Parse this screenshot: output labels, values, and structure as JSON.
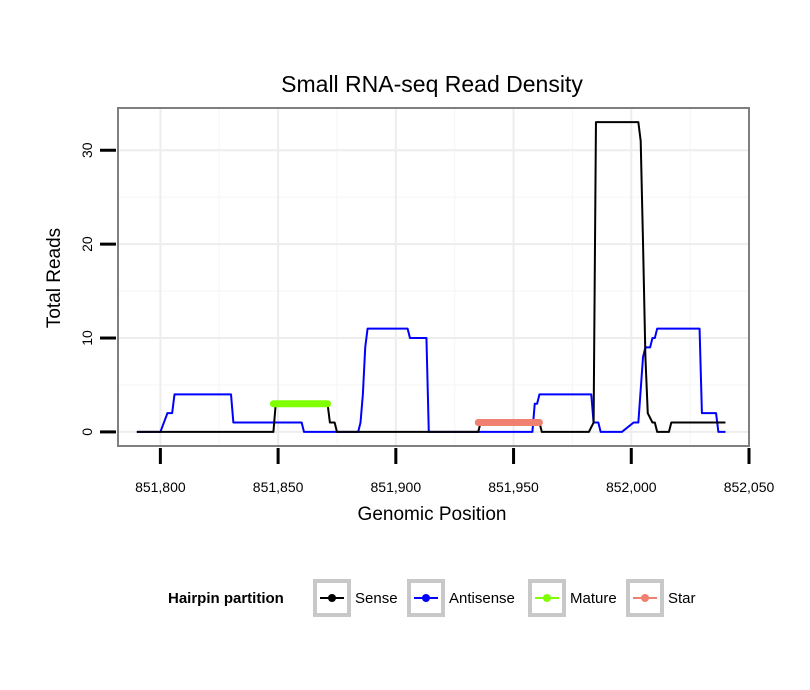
{
  "chart_data": {
    "type": "line",
    "title": "Small RNA-seq Read Density",
    "xlabel": "Genomic Position",
    "ylabel": "Total Reads",
    "xlim": [
      851782,
      852050
    ],
    "ylim": [
      -1.5,
      34.5
    ],
    "x_ticks": [
      851800,
      851850,
      851900,
      851950,
      852000,
      852050
    ],
    "x_tick_labels": [
      "851,800",
      "851,850",
      "851,900",
      "851,950",
      "852,000",
      "852,050"
    ],
    "y_ticks": [
      0,
      10,
      20,
      30
    ],
    "y_tick_labels": [
      "0",
      "10",
      "20",
      "30"
    ],
    "grid": true,
    "legend": {
      "title": "Hairpin partition",
      "position": "bottom",
      "entries": [
        {
          "name": "Sense",
          "color": "#000000"
        },
        {
          "name": "Antisense",
          "color": "#0000ff"
        },
        {
          "name": "Mature",
          "color": "#7fff00"
        },
        {
          "name": "Star",
          "color": "#f08070"
        }
      ]
    },
    "series": [
      {
        "name": "Sense",
        "color": "#000000",
        "points": [
          [
            851790,
            0
          ],
          [
            851848,
            0
          ],
          [
            851849,
            3
          ],
          [
            851871,
            3
          ],
          [
            851872,
            1
          ],
          [
            851874,
            1
          ],
          [
            851875,
            0
          ],
          [
            851935,
            0
          ],
          [
            851936,
            1
          ],
          [
            851961,
            1
          ],
          [
            851962,
            0
          ],
          [
            851982,
            0
          ],
          [
            851984,
            1
          ],
          [
            851985,
            33
          ],
          [
            852003,
            33
          ],
          [
            852004,
            31
          ],
          [
            852005,
            20
          ],
          [
            852006,
            8
          ],
          [
            852007,
            2
          ],
          [
            852009,
            1
          ],
          [
            852010,
            1
          ],
          [
            852011,
            0
          ],
          [
            852016,
            0
          ],
          [
            852017,
            1
          ],
          [
            852040,
            1
          ]
        ]
      },
      {
        "name": "Antisense",
        "color": "#0000ff",
        "points": [
          [
            851790,
            0
          ],
          [
            851800,
            0
          ],
          [
            851803,
            2
          ],
          [
            851805,
            2
          ],
          [
            851806,
            4
          ],
          [
            851830,
            4
          ],
          [
            851831,
            1
          ],
          [
            851848,
            1
          ],
          [
            851849,
            1
          ],
          [
            851857,
            1
          ],
          [
            851858,
            1
          ],
          [
            851860,
            1
          ],
          [
            851861,
            0
          ],
          [
            851880,
            0
          ],
          [
            851884,
            0
          ],
          [
            851885,
            1
          ],
          [
            851886,
            4
          ],
          [
            851887,
            9
          ],
          [
            851888,
            11
          ],
          [
            851905,
            11
          ],
          [
            851906,
            10
          ],
          [
            851913,
            10
          ],
          [
            851914,
            0
          ],
          [
            851936,
            0
          ],
          [
            851958,
            0
          ],
          [
            851959,
            3
          ],
          [
            851960,
            3
          ],
          [
            851961,
            4
          ],
          [
            851983,
            4
          ],
          [
            851984,
            1
          ],
          [
            851986,
            1
          ],
          [
            851987,
            0
          ],
          [
            851996,
            0
          ],
          [
            852001,
            1
          ],
          [
            852003,
            1
          ],
          [
            852005,
            8
          ],
          [
            852006,
            9
          ],
          [
            852008,
            9
          ],
          [
            852009,
            10
          ],
          [
            852010,
            10
          ],
          [
            852011,
            11
          ],
          [
            852029,
            11
          ],
          [
            852030,
            2
          ],
          [
            852036,
            2
          ],
          [
            852037,
            0
          ],
          [
            852040,
            0
          ]
        ]
      },
      {
        "name": "Mature",
        "color": "#7fff00",
        "points": [
          [
            851848,
            3
          ],
          [
            851871,
            3
          ]
        ]
      },
      {
        "name": "Star",
        "color": "#f08070",
        "points": [
          [
            851935,
            1
          ],
          [
            851961,
            1
          ]
        ]
      }
    ]
  }
}
